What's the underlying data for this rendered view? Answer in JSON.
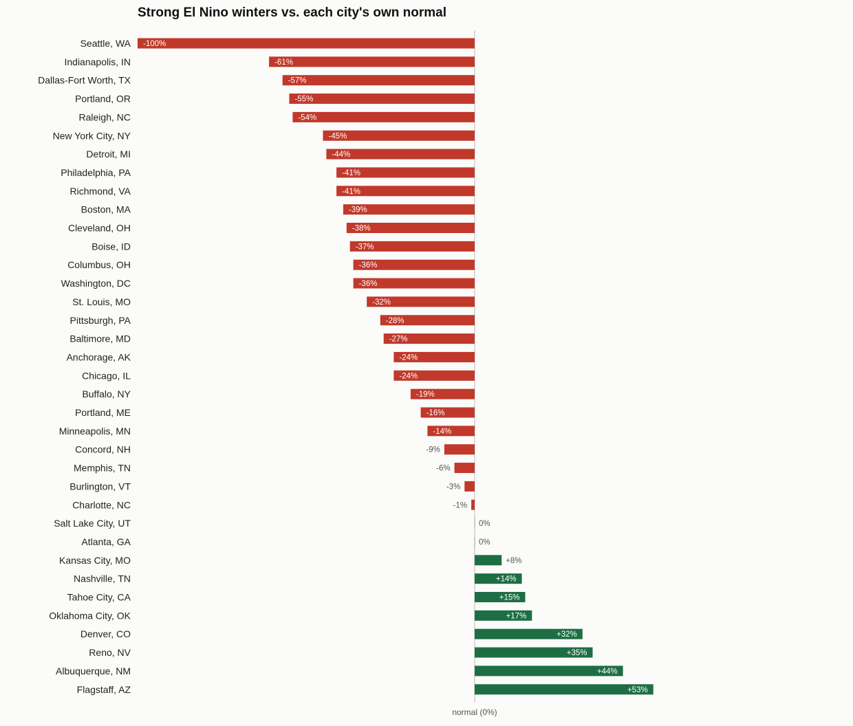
{
  "chart_data": {
    "type": "bar",
    "orientation": "horizontal",
    "title": "Strong El Nino winters vs. each city's own normal",
    "baseline_label": "normal (0%)",
    "xlim": [
      -100,
      53
    ],
    "unit": "%",
    "colors": {
      "negative": "#c0392b",
      "positive": "#1e6e44",
      "zero": "#999999",
      "axis": "#bbbbbb",
      "label_outside": "#555555",
      "label_inside": "#ffffff"
    },
    "categories": [
      "Seattle, WA",
      "Indianapolis, IN",
      "Dallas-Fort Worth, TX",
      "Portland, OR",
      "Raleigh, NC",
      "New York City, NY",
      "Detroit, MI",
      "Philadelphia, PA",
      "Richmond, VA",
      "Boston, MA",
      "Cleveland, OH",
      "Boise, ID",
      "Columbus, OH",
      "Washington, DC",
      "St. Louis, MO",
      "Pittsburgh, PA",
      "Baltimore, MD",
      "Anchorage, AK",
      "Chicago, IL",
      "Buffalo, NY",
      "Portland, ME",
      "Minneapolis, MN",
      "Concord, NH",
      "Memphis, TN",
      "Burlington, VT",
      "Charlotte, NC",
      "Salt Lake City, UT",
      "Atlanta, GA",
      "Kansas City, MO",
      "Nashville, TN",
      "Tahoe City, CA",
      "Oklahoma City, OK",
      "Denver, CO",
      "Reno, NV",
      "Albuquerque, NM",
      "Flagstaff, AZ"
    ],
    "values": [
      -100,
      -61,
      -57,
      -55,
      -54,
      -45,
      -44,
      -41,
      -41,
      -39,
      -38,
      -37,
      -36,
      -36,
      -32,
      -28,
      -27,
      -24,
      -24,
      -19,
      -16,
      -14,
      -9,
      -6,
      -3,
      -1,
      0,
      0,
      8,
      14,
      15,
      17,
      32,
      35,
      44,
      53
    ],
    "value_labels": [
      "-100%",
      "-61%",
      "-57%",
      "-55%",
      "-54%",
      "-45%",
      "-44%",
      "-41%",
      "-41%",
      "-39%",
      "-38%",
      "-37%",
      "-36%",
      "-36%",
      "-32%",
      "-28%",
      "-27%",
      "-24%",
      "-24%",
      "-19%",
      "-16%",
      "-14%",
      "-9%",
      "-6%",
      "-3%",
      "-1%",
      "0%",
      "0%",
      "+8%",
      "+14%",
      "+15%",
      "+17%",
      "+32%",
      "+35%",
      "+44%",
      "+53%"
    ]
  }
}
